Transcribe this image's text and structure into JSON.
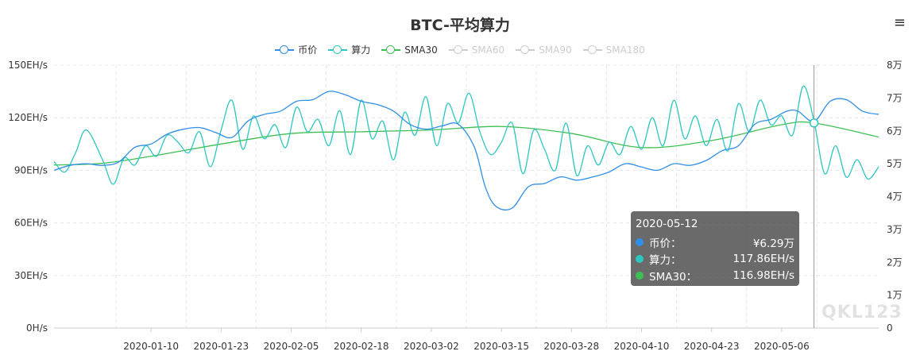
{
  "page": {
    "title": "BTC-平均算力",
    "menu_icon": "≡",
    "watermark": "QKL123"
  },
  "legend": [
    {
      "name": "币价",
      "color": "#2f8ee5",
      "active": true
    },
    {
      "name": "算力",
      "color": "#2ec7c0",
      "active": true
    },
    {
      "name": "SMA30",
      "color": "#3dbf53",
      "active": true
    },
    {
      "name": "SMA60",
      "color": "#cccccc",
      "active": false
    },
    {
      "name": "SMA90",
      "color": "#cccccc",
      "active": false
    },
    {
      "name": "SMA180",
      "color": "#cccccc",
      "active": false
    }
  ],
  "tooltip": {
    "date": "2020-05-12",
    "rows": [
      {
        "name": "币价：",
        "value": "¥6.29万",
        "color": "#2f8ee5"
      },
      {
        "name": "算力：",
        "value": "117.86EH/s",
        "color": "#2ec7c0"
      },
      {
        "name": "SMA30：",
        "value": "116.98EH/s",
        "color": "#3dbf53"
      }
    ]
  },
  "chart_data": {
    "type": "line",
    "title": "BTC-平均算力",
    "x_range": [
      "2019-12-23",
      "2020-05-24"
    ],
    "x_ticks": [
      "2020-01-10",
      "2020-01-23",
      "2020-02-05",
      "2020-02-18",
      "2020-03-02",
      "2020-03-15",
      "2020-03-28",
      "2020-04-10",
      "2020-04-23",
      "2020-05-06"
    ],
    "y_left": {
      "ticks": [
        "0H/s",
        "30EH/s",
        "60EH/s",
        "90EH/s",
        "120EH/s",
        "150EH/s"
      ],
      "range": [
        0,
        150
      ],
      "unit": "EH/s"
    },
    "y_right": {
      "ticks": [
        "0",
        "1万",
        "2万",
        "3万",
        "4万",
        "5万",
        "6万",
        "7万",
        "8万"
      ],
      "range": [
        0,
        8
      ],
      "unit": "万"
    },
    "grid": true,
    "legend_position": "top",
    "series": [
      {
        "name": "币价",
        "axis": "right",
        "color": "#2f8ee5",
        "points": [
          [
            "2019-12-23",
            4.8
          ],
          [
            "2019-12-26",
            4.95
          ],
          [
            "2019-12-29",
            5.0
          ],
          [
            "2020-01-01",
            4.95
          ],
          [
            "2020-01-04",
            5.05
          ],
          [
            "2020-01-07",
            5.5
          ],
          [
            "2020-01-10",
            5.6
          ],
          [
            "2020-01-13",
            5.9
          ],
          [
            "2020-01-16",
            6.05
          ],
          [
            "2020-01-19",
            6.1
          ],
          [
            "2020-01-22",
            5.95
          ],
          [
            "2020-01-25",
            5.8
          ],
          [
            "2020-01-28",
            6.3
          ],
          [
            "2020-01-31",
            6.5
          ],
          [
            "2020-02-03",
            6.6
          ],
          [
            "2020-02-06",
            6.9
          ],
          [
            "2020-02-09",
            6.95
          ],
          [
            "2020-02-12",
            7.2
          ],
          [
            "2020-02-15",
            7.1
          ],
          [
            "2020-02-18",
            6.9
          ],
          [
            "2020-02-21",
            6.8
          ],
          [
            "2020-02-24",
            6.6
          ],
          [
            "2020-02-27",
            6.2
          ],
          [
            "2020-03-01",
            6.05
          ],
          [
            "2020-03-04",
            6.15
          ],
          [
            "2020-03-07",
            6.2
          ],
          [
            "2020-03-10",
            5.5
          ],
          [
            "2020-03-12",
            4.3
          ],
          [
            "2020-03-14",
            3.7
          ],
          [
            "2020-03-17",
            3.65
          ],
          [
            "2020-03-20",
            4.3
          ],
          [
            "2020-03-23",
            4.4
          ],
          [
            "2020-03-26",
            4.6
          ],
          [
            "2020-03-29",
            4.5
          ],
          [
            "2020-04-01",
            4.6
          ],
          [
            "2020-04-04",
            4.75
          ],
          [
            "2020-04-07",
            5.0
          ],
          [
            "2020-04-10",
            4.9
          ],
          [
            "2020-04-13",
            4.8
          ],
          [
            "2020-04-16",
            5.0
          ],
          [
            "2020-04-19",
            4.95
          ],
          [
            "2020-04-22",
            5.1
          ],
          [
            "2020-04-25",
            5.4
          ],
          [
            "2020-04-28",
            5.55
          ],
          [
            "2020-05-01",
            6.2
          ],
          [
            "2020-05-04",
            6.35
          ],
          [
            "2020-05-07",
            6.6
          ],
          [
            "2020-05-09",
            6.6
          ],
          [
            "2020-05-12",
            6.29
          ],
          [
            "2020-05-15",
            6.9
          ],
          [
            "2020-05-18",
            6.95
          ],
          [
            "2020-05-21",
            6.6
          ],
          [
            "2020-05-24",
            6.5
          ]
        ]
      },
      {
        "name": "算力",
        "axis": "left",
        "color": "#2ec7c0",
        "points": [
          [
            "2019-12-23",
            95
          ],
          [
            "2019-12-25",
            89
          ],
          [
            "2019-12-27",
            100
          ],
          [
            "2019-12-29",
            113
          ],
          [
            "2020-01-01",
            96
          ],
          [
            "2020-01-03",
            82
          ],
          [
            "2020-01-05",
            97
          ],
          [
            "2020-01-07",
            93
          ],
          [
            "2020-01-09",
            104
          ],
          [
            "2020-01-11",
            98
          ],
          [
            "2020-01-13",
            110
          ],
          [
            "2020-01-15",
            106
          ],
          [
            "2020-01-17",
            100
          ],
          [
            "2020-01-19",
            112
          ],
          [
            "2020-01-21",
            92
          ],
          [
            "2020-01-23",
            113
          ],
          [
            "2020-01-25",
            130
          ],
          [
            "2020-01-27",
            102
          ],
          [
            "2020-01-29",
            121
          ],
          [
            "2020-01-31",
            108
          ],
          [
            "2020-02-02",
            116
          ],
          [
            "2020-02-04",
            103
          ],
          [
            "2020-02-06",
            126
          ],
          [
            "2020-02-08",
            112
          ],
          [
            "2020-02-10",
            119
          ],
          [
            "2020-02-12",
            104
          ],
          [
            "2020-02-14",
            124
          ],
          [
            "2020-02-16",
            99
          ],
          [
            "2020-02-18",
            130
          ],
          [
            "2020-02-20",
            108
          ],
          [
            "2020-02-22",
            118
          ],
          [
            "2020-02-24",
            96
          ],
          [
            "2020-02-26",
            123
          ],
          [
            "2020-02-28",
            110
          ],
          [
            "2020-03-01",
            132
          ],
          [
            "2020-03-03",
            104
          ],
          [
            "2020-03-05",
            128
          ],
          [
            "2020-03-07",
            117
          ],
          [
            "2020-03-09",
            134
          ],
          [
            "2020-03-11",
            112
          ],
          [
            "2020-03-13",
            99
          ],
          [
            "2020-03-15",
            106
          ],
          [
            "2020-03-17",
            117
          ],
          [
            "2020-03-19",
            88
          ],
          [
            "2020-03-21",
            113
          ],
          [
            "2020-03-23",
            102
          ],
          [
            "2020-03-25",
            90
          ],
          [
            "2020-03-27",
            117
          ],
          [
            "2020-03-29",
            87
          ],
          [
            "2020-03-31",
            104
          ],
          [
            "2020-04-02",
            93
          ],
          [
            "2020-04-04",
            106
          ],
          [
            "2020-04-06",
            99
          ],
          [
            "2020-04-08",
            115
          ],
          [
            "2020-04-10",
            102
          ],
          [
            "2020-04-12",
            120
          ],
          [
            "2020-04-14",
            104
          ],
          [
            "2020-04-16",
            130
          ],
          [
            "2020-04-18",
            108
          ],
          [
            "2020-04-20",
            121
          ],
          [
            "2020-04-22",
            104
          ],
          [
            "2020-04-24",
            119
          ],
          [
            "2020-04-26",
            101
          ],
          [
            "2020-04-28",
            128
          ],
          [
            "2020-04-30",
            112
          ],
          [
            "2020-05-02",
            130
          ],
          [
            "2020-05-04",
            116
          ],
          [
            "2020-05-06",
            121
          ],
          [
            "2020-05-08",
            110
          ],
          [
            "2020-05-10",
            138
          ],
          [
            "2020-05-12",
            118
          ],
          [
            "2020-05-14",
            88
          ],
          [
            "2020-05-16",
            104
          ],
          [
            "2020-05-18",
            86
          ],
          [
            "2020-05-20",
            96
          ],
          [
            "2020-05-22",
            85
          ],
          [
            "2020-05-24",
            92
          ]
        ]
      },
      {
        "name": "SMA30",
        "axis": "left",
        "color": "#3dbf53",
        "points": [
          [
            "2019-12-23",
            93
          ],
          [
            "2020-01-01",
            94
          ],
          [
            "2020-01-10",
            98
          ],
          [
            "2020-01-23",
            105
          ],
          [
            "2020-02-05",
            111
          ],
          [
            "2020-02-18",
            112
          ],
          [
            "2020-03-02",
            113
          ],
          [
            "2020-03-15",
            115
          ],
          [
            "2020-03-28",
            111
          ],
          [
            "2020-04-10",
            103
          ],
          [
            "2020-04-23",
            107
          ],
          [
            "2020-05-06",
            116
          ],
          [
            "2020-05-12",
            116.98
          ],
          [
            "2020-05-24",
            109
          ]
        ]
      }
    ]
  }
}
